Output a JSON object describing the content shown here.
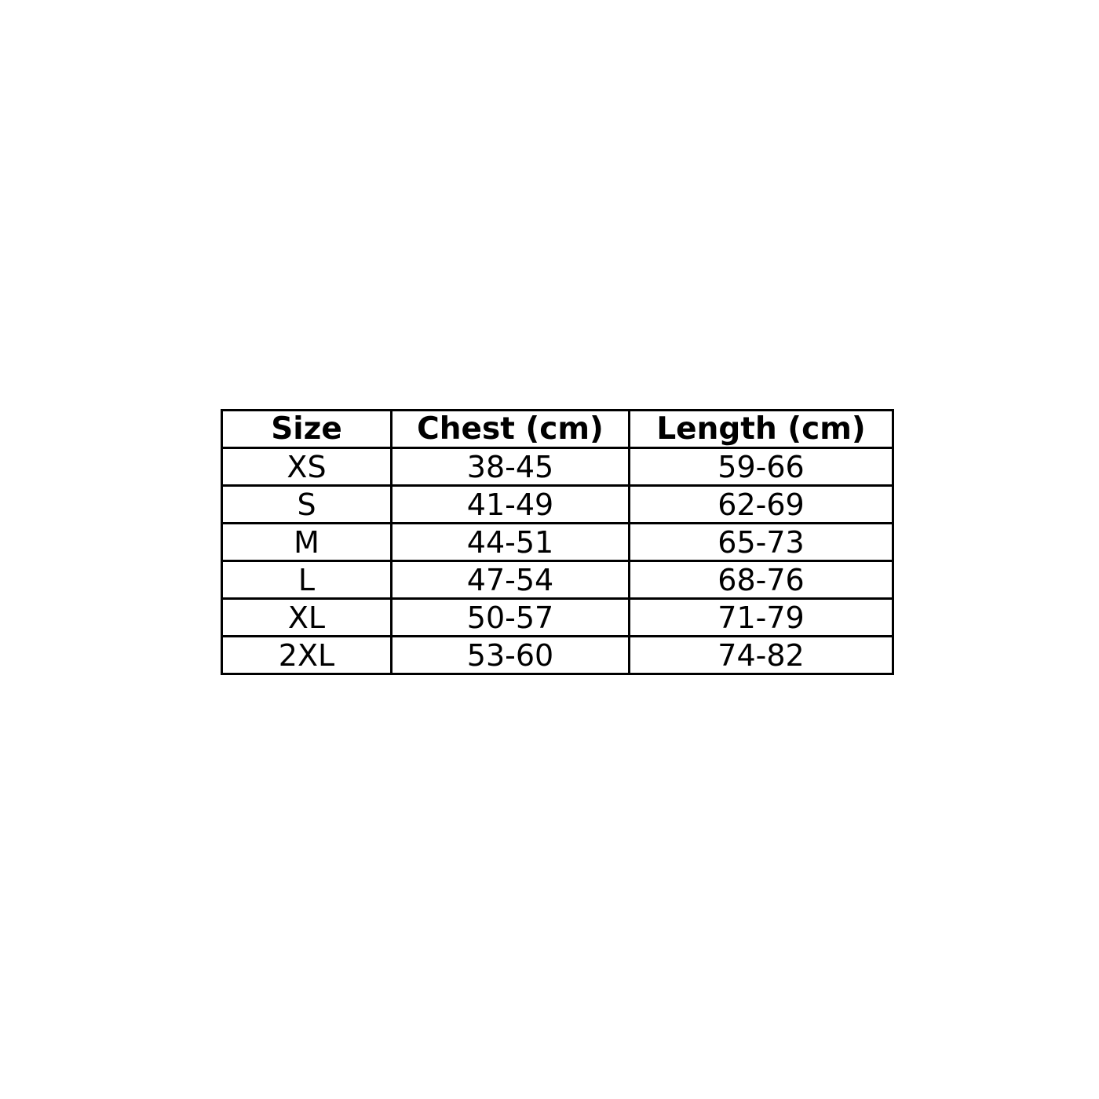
{
  "page": {
    "background_color": "#ffffff",
    "text_color": "#000000",
    "border_color": "#000000"
  },
  "chart_data": {
    "type": "table",
    "title": "",
    "columns": [
      "Size",
      "Chest (cm)",
      "Length (cm)"
    ],
    "rows": [
      [
        "XS",
        "38-45",
        "59-66"
      ],
      [
        "S",
        "41-49",
        "62-69"
      ],
      [
        "M",
        "44-51",
        "65-73"
      ],
      [
        "L",
        "47-54",
        "68-76"
      ],
      [
        "XL",
        "50-57",
        "71-79"
      ],
      [
        "2XL",
        "53-60",
        "74-82"
      ]
    ],
    "layout": {
      "grid": "full-borders",
      "header_style": "bold",
      "alignment": "center"
    }
  }
}
